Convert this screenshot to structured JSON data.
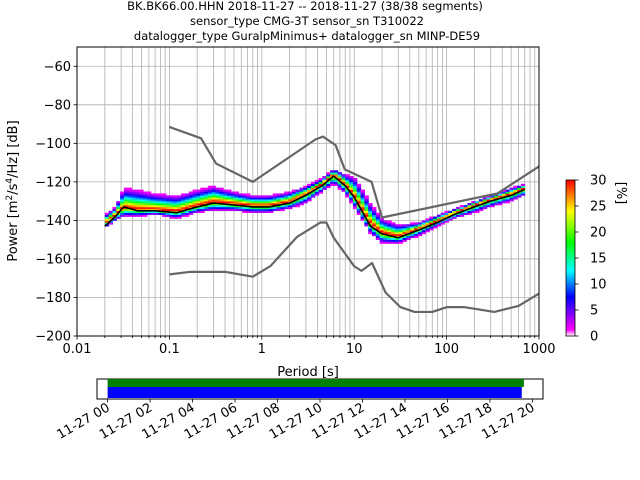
{
  "title_lines": [
    "BK.BK66.00.HHN   2018-11-27 -- 2018-11-27  (38/38 segments)",
    "sensor_type CMG-3T sensor_sn T310022",
    "datalogger_type GuralpMinimus+ datalogger_sn MINP-DE59"
  ],
  "chart_data": [
    {
      "type": "heatmap",
      "title": "BK.BK66.00.HHN   2018-11-27 -- 2018-11-27  (38/38 segments)",
      "xlabel": "Period [s]",
      "ylabel_parts": [
        "Power [m",
        "2",
        "/s",
        "4",
        "/Hz] [dB]"
      ],
      "xscale": "log",
      "xlim": [
        0.01,
        1000
      ],
      "ylim": [
        -200,
        -50
      ],
      "xticks": [
        0.01,
        0.1,
        1,
        10,
        100,
        1000
      ],
      "xtick_labels": [
        "0.01",
        "0.1",
        "1",
        "10",
        "100",
        "1000"
      ],
      "yticks": [
        -200,
        -180,
        -160,
        -140,
        -120,
        -100,
        -80,
        -60
      ],
      "ytick_labels": [
        "−200",
        "−180",
        "−160",
        "−140",
        "−120",
        "−100",
        "−80",
        "−60"
      ],
      "grid": true,
      "colorbar": {
        "label": "[%]",
        "range": [
          0,
          30
        ],
        "ticks": [
          0,
          5,
          10,
          15,
          20,
          25,
          30
        ],
        "tick_labels": [
          "0",
          "5",
          "10",
          "15",
          "20",
          "25",
          "30"
        ],
        "colors": [
          "#ffffff",
          "#ff00ff",
          "#0000ff",
          "#00ffff",
          "#00ff00",
          "#ffff00",
          "#ff0000"
        ]
      },
      "mode_curve": {
        "name": "mode",
        "color": "#000000",
        "x": [
          0.02,
          0.026,
          0.032,
          0.045,
          0.07,
          0.12,
          0.2,
          0.3,
          0.5,
          0.8,
          1.2,
          2,
          3,
          4.5,
          6,
          8,
          10,
          15,
          20,
          30,
          50,
          80,
          120,
          200,
          300,
          500,
          700
        ],
        "y": [
          -143,
          -138,
          -133,
          -135,
          -135,
          -136,
          -133,
          -131,
          -132,
          -133,
          -133,
          -131,
          -127,
          -122,
          -117,
          -122,
          -128,
          -143,
          -147,
          -149,
          -145,
          -141,
          -137,
          -133,
          -130,
          -127,
          -124
        ]
      },
      "density_band": {
        "x": [
          0.02,
          0.026,
          0.032,
          0.045,
          0.07,
          0.12,
          0.2,
          0.3,
          0.5,
          0.8,
          1.2,
          2,
          3,
          4.5,
          6,
          8,
          10,
          15,
          20,
          30,
          50,
          80,
          120,
          200,
          300,
          500,
          700
        ],
        "center": [
          -141,
          -137,
          -133,
          -134,
          -134,
          -135,
          -132,
          -130,
          -131,
          -132,
          -132,
          -130,
          -126,
          -121,
          -116,
          -121,
          -127,
          -141,
          -146,
          -148,
          -144,
          -140,
          -136,
          -132,
          -129,
          -126,
          -123
        ],
        "low": [
          -144,
          -140,
          -138,
          -138,
          -137,
          -139,
          -136,
          -135,
          -135,
          -136,
          -136,
          -134,
          -131,
          -125,
          -121,
          -126,
          -133,
          -147,
          -152,
          -152,
          -148,
          -143,
          -139,
          -136,
          -133,
          -130,
          -127
        ],
        "high": [
          -137,
          -133,
          -123,
          -124,
          -126,
          -127,
          -124,
          -122,
          -125,
          -127,
          -127,
          -125,
          -122,
          -118,
          -113,
          -116,
          -117,
          -131,
          -139,
          -142,
          -141,
          -137,
          -134,
          -130,
          -127,
          -123,
          -121
        ]
      },
      "noise_models": [
        {
          "name": "NHNM",
          "color": "#666666",
          "x": [
            0.1,
            0.22,
            0.32,
            0.8,
            3.8,
            4.6,
            6.3,
            7.9,
            15.4,
            20,
            354.8,
            1000
          ],
          "y": [
            -91.5,
            -97.4,
            -110.5,
            -120,
            -98,
            -96.5,
            -101,
            -113.5,
            -120,
            -138.5,
            -126,
            -112
          ]
        },
        {
          "name": "NLNM",
          "color": "#666666",
          "x": [
            0.1,
            0.17,
            0.4,
            0.8,
            1.24,
            2.4,
            4.3,
            5,
            6,
            10,
            12,
            15.6,
            21.9,
            31.6,
            45,
            70,
            101,
            154,
            328,
            600,
            1000
          ],
          "y": [
            -168,
            -166.7,
            -166.7,
            -169.2,
            -163.7,
            -148.6,
            -141.1,
            -141.1,
            -149,
            -163.8,
            -166.2,
            -162.1,
            -177.5,
            -185,
            -187.5,
            -187.5,
            -185,
            -185,
            -187.5,
            -184.4,
            -178
          ]
        }
      ]
    },
    {
      "type": "bar",
      "title": "",
      "xlabel": "",
      "xtick_labels": [
        "11-27 00",
        "11-27 02",
        "11-27 04",
        "11-27 06",
        "11-27 08",
        "11-27 10",
        "11-27 12",
        "11-27 14",
        "11-27 16",
        "11-27 18",
        "11-27 20"
      ],
      "xlim_hours": [
        -0.5,
        20.5
      ],
      "xticks_hours": [
        0,
        2,
        4,
        6,
        8,
        10,
        12,
        14,
        16,
        18,
        20
      ],
      "series": [
        {
          "color": "#008000",
          "start_hour": 0,
          "end_hour": 19.6
        },
        {
          "color": "#0000ff",
          "start_hour": 0,
          "end_hour": 19.5
        }
      ]
    }
  ]
}
